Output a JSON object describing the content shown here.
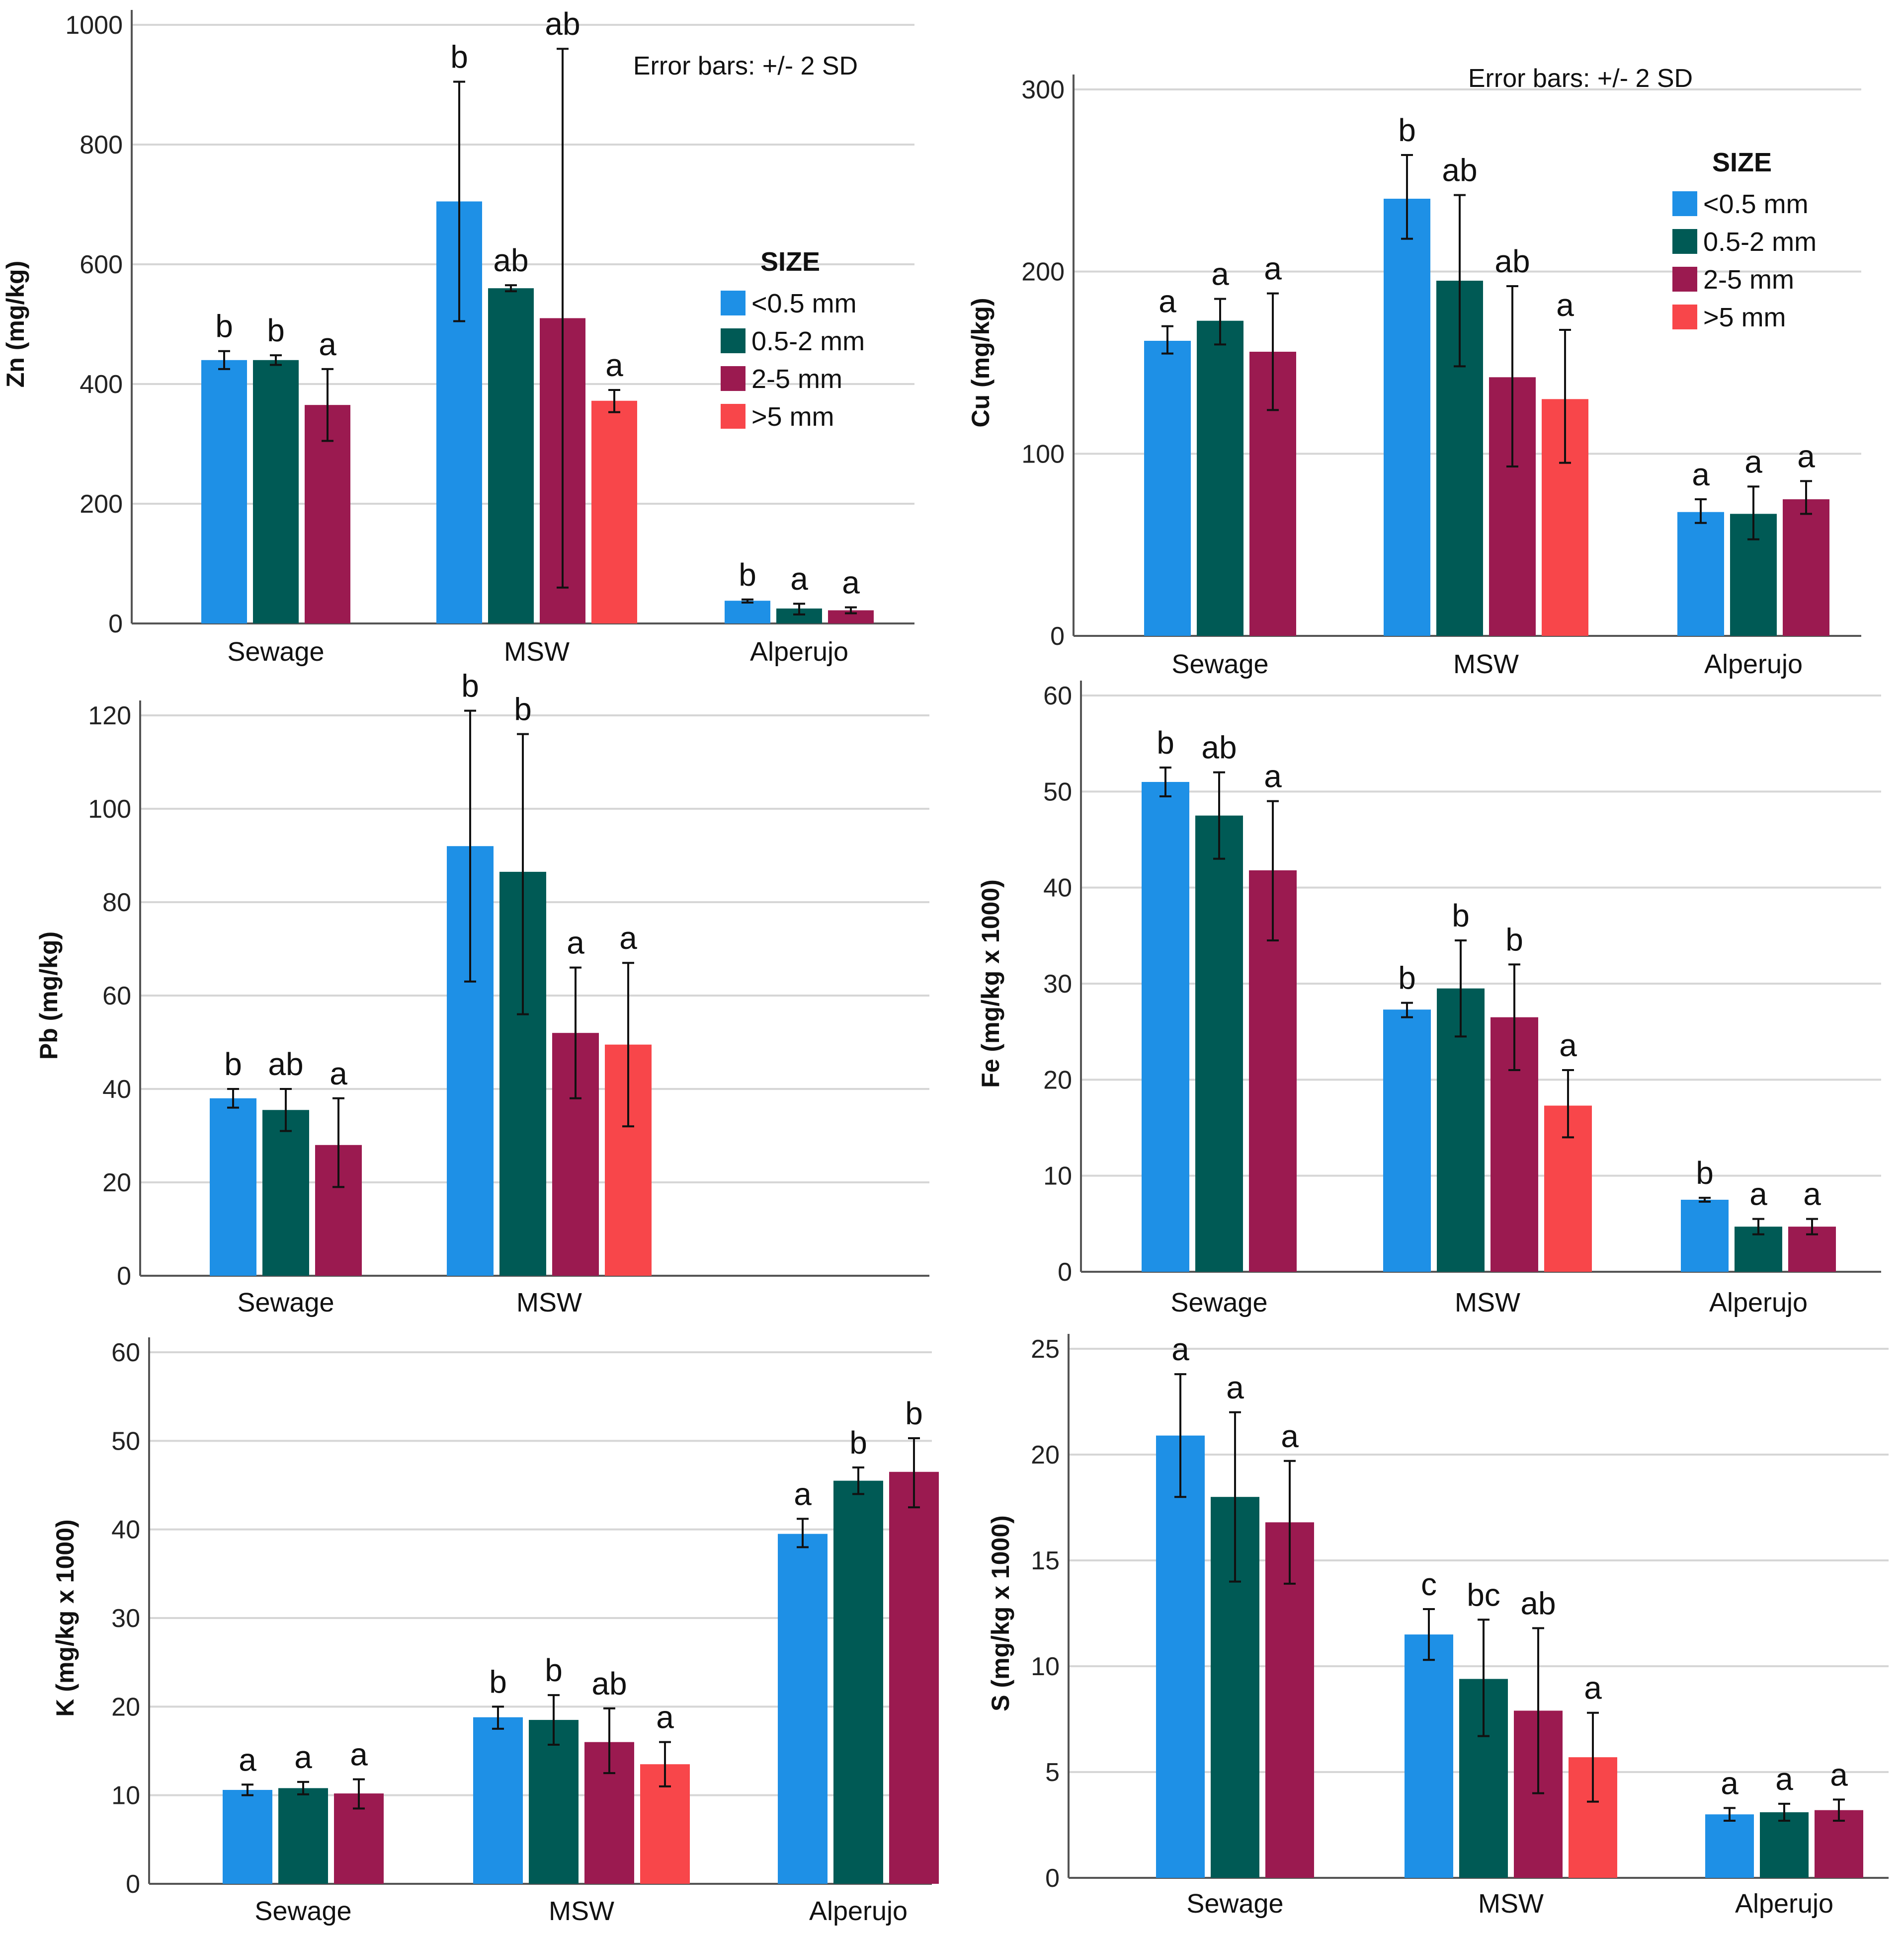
{
  "colors": {
    "size_lt_0_5": "#1e90e6",
    "size_0_5_2": "#005a55",
    "size_2_5": "#9b1a50",
    "size_gt_5": "#f8464a"
  },
  "chart_data": [
    {
      "type": "bar",
      "ylabel": "Zn (mg/kg)",
      "categories": [
        "Sewage",
        "MSW",
        "Alperujo"
      ],
      "yticks": [
        "0",
        "200",
        "400",
        "600",
        "800",
        "1000"
      ],
      "ylim": [
        0,
        1000
      ],
      "note": "Error bars: +/- 2 SD",
      "legend": {
        "title": "SIZE",
        "entries": [
          "<0.5 mm",
          "0.5-2 mm",
          "2-5 mm",
          ">5 mm"
        ],
        "position": "center-right"
      },
      "series": [
        {
          "name": "<0.5 mm",
          "values": [
            440,
            705,
            38
          ],
          "err_low": [
            425,
            505,
            35
          ],
          "err_high": [
            455,
            905,
            40
          ],
          "letters": [
            "b",
            "b",
            "b"
          ]
        },
        {
          "name": "0.5-2 mm",
          "values": [
            440,
            560,
            25
          ],
          "err_low": [
            432,
            555,
            15
          ],
          "err_high": [
            448,
            565,
            33
          ],
          "letters": [
            "b",
            "ab",
            "a"
          ]
        },
        {
          "name": "2-5 mm",
          "values": [
            365,
            510,
            22
          ],
          "err_low": [
            305,
            60,
            17
          ],
          "err_high": [
            425,
            960,
            27
          ],
          "letters": [
            "a",
            "ab",
            "a"
          ]
        },
        {
          "name": ">5 mm",
          "values": [
            null,
            372,
            null
          ],
          "err_low": [
            null,
            353,
            null
          ],
          "err_high": [
            null,
            390,
            null
          ],
          "letters": [
            "",
            "a",
            ""
          ]
        }
      ]
    },
    {
      "type": "bar",
      "ylabel": "Cu (mg/kg)",
      "categories": [
        "Sewage",
        "MSW",
        "Alperujo"
      ],
      "yticks": [
        "0",
        "100",
        "200",
        "300"
      ],
      "ylim": [
        0,
        300
      ],
      "note": "Error bars: +/- 2 SD",
      "legend": {
        "title": "SIZE",
        "entries": [
          "<0.5 mm",
          "0.5-2 mm",
          "2-5 mm",
          ">5 mm"
        ],
        "position": "top-right"
      },
      "series": [
        {
          "name": "<0.5 mm",
          "values": [
            162,
            240,
            68
          ],
          "err_low": [
            155,
            218,
            62
          ],
          "err_high": [
            170,
            264,
            75
          ],
          "letters": [
            "a",
            "b",
            "a"
          ]
        },
        {
          "name": "0.5-2 mm",
          "values": [
            173,
            195,
            67
          ],
          "err_low": [
            160,
            148,
            53
          ],
          "err_high": [
            185,
            242,
            82
          ],
          "letters": [
            "a",
            "ab",
            "a"
          ]
        },
        {
          "name": "2-5 mm",
          "values": [
            156,
            142,
            75
          ],
          "err_low": [
            124,
            93,
            67
          ],
          "err_high": [
            188,
            192,
            85
          ],
          "letters": [
            "a",
            "ab",
            "a"
          ]
        },
        {
          "name": ">5 mm",
          "values": [
            null,
            130,
            null
          ],
          "err_low": [
            null,
            95,
            null
          ],
          "err_high": [
            null,
            168,
            null
          ],
          "letters": [
            "",
            "a",
            ""
          ]
        }
      ]
    },
    {
      "type": "bar",
      "ylabel": "Pb (mg/kg)",
      "categories": [
        "Sewage",
        "MSW"
      ],
      "yticks": [
        "0",
        "20",
        "40",
        "60",
        "80",
        "100",
        "120"
      ],
      "ylim": [
        0,
        120
      ],
      "series": [
        {
          "name": "<0.5 mm",
          "values": [
            38,
            92
          ],
          "err_low": [
            36,
            63
          ],
          "err_high": [
            40,
            121
          ],
          "letters": [
            "b",
            "b"
          ]
        },
        {
          "name": "0.5-2 mm",
          "values": [
            35.5,
            86.5
          ],
          "err_low": [
            31,
            56
          ],
          "err_high": [
            40,
            116
          ],
          "letters": [
            "ab",
            "b"
          ]
        },
        {
          "name": "2-5 mm",
          "values": [
            28,
            52
          ],
          "err_low": [
            19,
            38
          ],
          "err_high": [
            38,
            66
          ],
          "letters": [
            "a",
            "a"
          ]
        },
        {
          "name": ">5 mm",
          "values": [
            null,
            49.5
          ],
          "err_low": [
            null,
            32
          ],
          "err_high": [
            null,
            67
          ],
          "letters": [
            "",
            "a"
          ]
        }
      ]
    },
    {
      "type": "bar",
      "ylabel": "Fe (mg/kg x 1000)",
      "categories": [
        "Sewage",
        "MSW",
        "Alperujo"
      ],
      "yticks": [
        "0",
        "10",
        "20",
        "30",
        "40",
        "50",
        "60"
      ],
      "ylim": [
        0,
        60
      ],
      "series": [
        {
          "name": "<0.5 mm",
          "values": [
            51,
            27.3,
            7.5
          ],
          "err_low": [
            49.5,
            26.5,
            7.3
          ],
          "err_high": [
            52.5,
            28,
            7.7
          ],
          "letters": [
            "b",
            "b",
            "b"
          ]
        },
        {
          "name": "0.5-2 mm",
          "values": [
            47.5,
            29.5,
            4.7
          ],
          "err_low": [
            43,
            24.5,
            3.9
          ],
          "err_high": [
            52,
            34.5,
            5.5
          ],
          "letters": [
            "ab",
            "b",
            "a"
          ]
        },
        {
          "name": "2-5 mm",
          "values": [
            41.8,
            26.5,
            4.7
          ],
          "err_low": [
            34.5,
            21,
            3.9
          ],
          "err_high": [
            49,
            32,
            5.5
          ],
          "letters": [
            "a",
            "b",
            "a"
          ]
        },
        {
          "name": ">5 mm",
          "values": [
            null,
            17.3,
            null
          ],
          "err_low": [
            null,
            14,
            null
          ],
          "err_high": [
            null,
            21,
            null
          ],
          "letters": [
            "",
            "a",
            ""
          ]
        }
      ]
    },
    {
      "type": "bar",
      "ylabel": "K (mg/kg x 1000)",
      "categories": [
        "Sewage",
        "MSW",
        "Alperujo"
      ],
      "yticks": [
        "0",
        "10",
        "20",
        "30",
        "40",
        "50",
        "60"
      ],
      "ylim": [
        0,
        60
      ],
      "series": [
        {
          "name": "<0.5 mm",
          "values": [
            10.6,
            18.8,
            39.5
          ],
          "err_low": [
            10,
            17.5,
            38
          ],
          "err_high": [
            11.2,
            20,
            41.2
          ],
          "letters": [
            "a",
            "b",
            "a"
          ]
        },
        {
          "name": "0.5-2 mm",
          "values": [
            10.8,
            18.5,
            45.5
          ],
          "err_low": [
            10.1,
            15.7,
            44
          ],
          "err_high": [
            11.5,
            21.3,
            47
          ],
          "letters": [
            "a",
            "b",
            "b"
          ]
        },
        {
          "name": "2-5 mm",
          "values": [
            10.2,
            16,
            46.5
          ],
          "err_low": [
            8.5,
            12.5,
            42.5
          ],
          "err_high": [
            11.8,
            19.8,
            50.3
          ],
          "letters": [
            "a",
            "ab",
            "b"
          ]
        },
        {
          "name": ">5 mm",
          "values": [
            null,
            13.5,
            null
          ],
          "err_low": [
            null,
            11,
            null
          ],
          "err_high": [
            null,
            16,
            null
          ],
          "letters": [
            "",
            "a",
            ""
          ]
        }
      ]
    },
    {
      "type": "bar",
      "ylabel": "S (mg/kg x 1000)",
      "categories": [
        "Sewage",
        "MSW",
        "Alperujo"
      ],
      "yticks": [
        "0",
        "5",
        "10",
        "15",
        "20",
        "25"
      ],
      "ylim": [
        0,
        25
      ],
      "series": [
        {
          "name": "<0.5 mm",
          "values": [
            20.9,
            11.5,
            3.0
          ],
          "err_low": [
            18,
            10.3,
            2.7
          ],
          "err_high": [
            23.8,
            12.7,
            3.3
          ],
          "letters": [
            "a",
            "c",
            "a"
          ]
        },
        {
          "name": "0.5-2 mm",
          "values": [
            18,
            9.4,
            3.1
          ],
          "err_low": [
            14,
            6.7,
            2.7
          ],
          "err_high": [
            22,
            12.2,
            3.5
          ],
          "letters": [
            "a",
            "bc",
            "a"
          ]
        },
        {
          "name": "2-5 mm",
          "values": [
            16.8,
            7.9,
            3.2
          ],
          "err_low": [
            13.9,
            4.0,
            2.7
          ],
          "err_high": [
            19.7,
            11.8,
            3.7
          ],
          "letters": [
            "a",
            "ab",
            "a"
          ]
        },
        {
          "name": ">5 mm",
          "values": [
            null,
            5.7,
            null
          ],
          "err_low": [
            null,
            3.6,
            null
          ],
          "err_high": [
            null,
            7.8,
            null
          ],
          "letters": [
            "",
            "a",
            ""
          ]
        }
      ]
    }
  ]
}
